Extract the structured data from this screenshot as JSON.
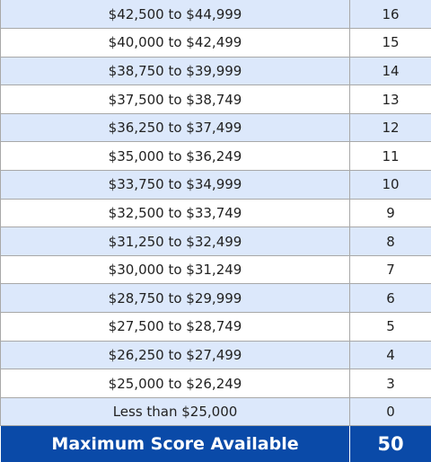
{
  "rows": [
    {
      "range": "$42,500 to $44,999",
      "score": "16"
    },
    {
      "range": "$40,000 to $42,499",
      "score": "15"
    },
    {
      "range": "$38,750 to $39,999",
      "score": "14"
    },
    {
      "range": "$37,500 to $38,749",
      "score": "13"
    },
    {
      "range": "$36,250 to $37,499",
      "score": "12"
    },
    {
      "range": "$35,000 to $36,249",
      "score": "11"
    },
    {
      "range": "$33,750 to $34,999",
      "score": "10"
    },
    {
      "range": "$32,500 to $33,749",
      "score": "9"
    },
    {
      "range": "$31,250 to $32,499",
      "score": "8"
    },
    {
      "range": "$30,000 to $31,249",
      "score": "7"
    },
    {
      "range": "$28,750 to $29,999",
      "score": "6"
    },
    {
      "range": "$27,500 to $28,749",
      "score": "5"
    },
    {
      "range": "$26,250 to $27,499",
      "score": "4"
    },
    {
      "range": "$25,000 to $26,249",
      "score": "3"
    },
    {
      "range": "Less than $25,000",
      "score": "0"
    }
  ],
  "footer": {
    "label": "Maximum Score Available",
    "score": "50"
  },
  "colors": {
    "row_alt": "#dce8fb",
    "row_plain": "#ffffff",
    "footer_bg": "#0a4aa8",
    "footer_text": "#ffffff"
  }
}
